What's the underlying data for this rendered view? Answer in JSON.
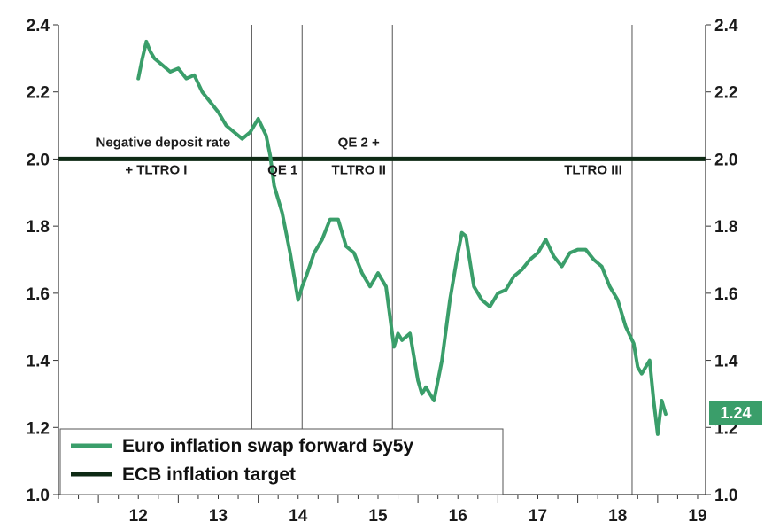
{
  "chart_data": {
    "type": "line",
    "x_ticks": [
      "12",
      "13",
      "14",
      "15",
      "16",
      "17",
      "18",
      "19"
    ],
    "y_ticks": [
      "1.0",
      "1.2",
      "1.4",
      "1.6",
      "1.8",
      "2.0",
      "2.2",
      "2.4"
    ],
    "xlim": [
      2011.5,
      2019.6
    ],
    "ylim": [
      1.0,
      2.4
    ],
    "series": [
      {
        "name": "Euro inflation swap forward 5y5y",
        "color": "#3a9e6a",
        "x": [
          2012.5,
          2012.55,
          2012.6,
          2012.65,
          2012.7,
          2012.8,
          2012.9,
          2013.0,
          2013.1,
          2013.2,
          2013.3,
          2013.4,
          2013.5,
          2013.6,
          2013.7,
          2013.8,
          2013.9,
          2014.0,
          2014.1,
          2014.15,
          2014.2,
          2014.3,
          2014.4,
          2014.5,
          2014.55,
          2014.6,
          2014.7,
          2014.8,
          2014.9,
          2015.0,
          2015.05,
          2015.1,
          2015.2,
          2015.3,
          2015.4,
          2015.5,
          2015.6,
          2015.7,
          2015.75,
          2015.8,
          2015.9,
          2016.0,
          2016.05,
          2016.1,
          2016.2,
          2016.3,
          2016.4,
          2016.5,
          2016.55,
          2016.6,
          2016.7,
          2016.8,
          2016.9,
          2017.0,
          2017.1,
          2017.2,
          2017.3,
          2017.4,
          2017.5,
          2017.6,
          2017.7,
          2017.8,
          2017.9,
          2018.0,
          2018.1,
          2018.2,
          2018.3,
          2018.4,
          2018.5,
          2018.6,
          2018.7,
          2018.75,
          2018.8,
          2018.9,
          2018.95,
          2019.0,
          2019.05,
          2019.1
        ],
        "y": [
          2.24,
          2.3,
          2.35,
          2.32,
          2.3,
          2.28,
          2.26,
          2.27,
          2.24,
          2.25,
          2.2,
          2.17,
          2.14,
          2.1,
          2.08,
          2.06,
          2.08,
          2.12,
          2.07,
          2.01,
          1.92,
          1.84,
          1.72,
          1.58,
          1.62,
          1.65,
          1.72,
          1.76,
          1.82,
          1.82,
          1.78,
          1.74,
          1.72,
          1.66,
          1.62,
          1.66,
          1.62,
          1.44,
          1.48,
          1.46,
          1.48,
          1.34,
          1.3,
          1.32,
          1.28,
          1.4,
          1.58,
          1.72,
          1.78,
          1.77,
          1.62,
          1.58,
          1.56,
          1.6,
          1.61,
          1.65,
          1.67,
          1.7,
          1.72,
          1.76,
          1.71,
          1.68,
          1.72,
          1.73,
          1.73,
          1.7,
          1.68,
          1.62,
          1.58,
          1.5,
          1.45,
          1.38,
          1.36,
          1.4,
          1.28,
          1.18,
          1.28,
          1.24
        ]
      },
      {
        "name": "ECB inflation target",
        "color": "#0e2a14",
        "x": [
          2011.5,
          2019.6
        ],
        "y": [
          2.0,
          2.0
        ]
      }
    ],
    "events": [
      {
        "x": 2013.92,
        "label_line1": "Negative deposit rate",
        "label_line2": "+ TLTRO I"
      },
      {
        "x": 2014.55,
        "label_line1": "",
        "label_line2": "QE 1"
      },
      {
        "x": 2015.68,
        "label_line1": "QE 2 +",
        "label_line2": "TLTRO II"
      },
      {
        "x": 2018.68,
        "label_line1": "",
        "label_line2": "TLTRO III"
      }
    ],
    "last_value_label": "1.24",
    "grid": false,
    "legend_position": "bottom-left"
  }
}
